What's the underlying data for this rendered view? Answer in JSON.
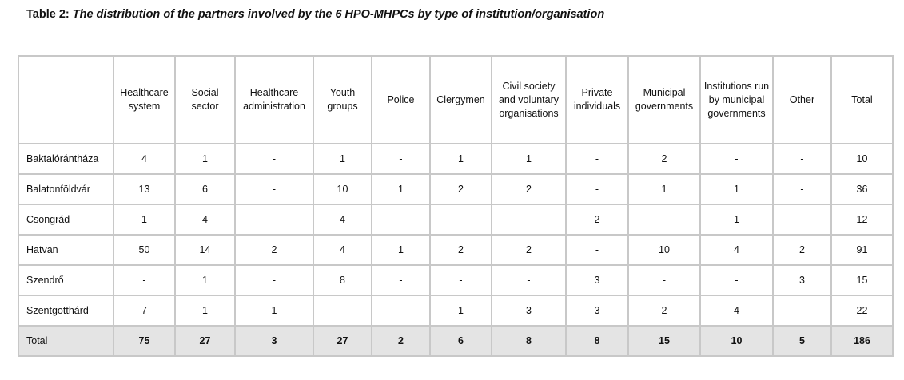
{
  "caption": {
    "label": "Table 2:",
    "title": "The distribution of the partners involved by the 6 HPO-MHPCs by type of institution/organisation"
  },
  "table": {
    "corner": "",
    "columns": [
      "Healthcare system",
      "Social sector",
      "Healthcare administration",
      "Youth groups",
      "Police",
      "Clergymen",
      "Civil society and voluntary organisations",
      "Private individuals",
      "Municipal governments",
      "Institutions run by municipal governments",
      "Other",
      "Total"
    ],
    "rows": [
      {
        "name": "Baktalórántháza",
        "values": [
          "4",
          "1",
          "-",
          "1",
          "-",
          "1",
          "1",
          "-",
          "2",
          "-",
          "-",
          "10"
        ]
      },
      {
        "name": "Balatonföldvár",
        "values": [
          "13",
          "6",
          "-",
          "10",
          "1",
          "2",
          "2",
          "-",
          "1",
          "1",
          "-",
          "36"
        ]
      },
      {
        "name": "Csongrád",
        "values": [
          "1",
          "4",
          "-",
          "4",
          "-",
          "-",
          "-",
          "2",
          "-",
          "1",
          "-",
          "12"
        ]
      },
      {
        "name": "Hatvan",
        "values": [
          "50",
          "14",
          "2",
          "4",
          "1",
          "2",
          "2",
          "-",
          "10",
          "4",
          "2",
          "91"
        ]
      },
      {
        "name": "Szendrő",
        "values": [
          "-",
          "1",
          "-",
          "8",
          "-",
          "-",
          "-",
          "3",
          "-",
          "-",
          "3",
          "15"
        ]
      },
      {
        "name": "Szentgotthárd",
        "values": [
          "7",
          "1",
          "1",
          "-",
          "-",
          "1",
          "3",
          "3",
          "2",
          "4",
          "-",
          "22"
        ]
      }
    ],
    "total_row": {
      "name": "Total",
      "values": [
        "75",
        "27",
        "3",
        "27",
        "2",
        "6",
        "8",
        "8",
        "15",
        "10",
        "5",
        "186"
      ]
    }
  }
}
